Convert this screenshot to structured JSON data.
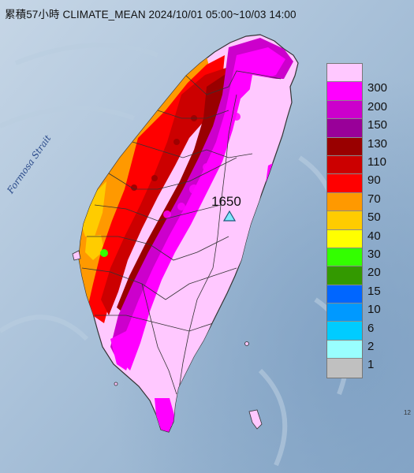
{
  "title": "累積57小時 CLIMATE_MEAN 2024/10/01 05:00~10/03 14:00",
  "strait_label": "Formosa Strait",
  "peak": {
    "value": "1650",
    "icon": "triangle-marker-icon"
  },
  "edge_label": "12",
  "legend": [
    {
      "label": "300",
      "color": "#ffc8ff"
    },
    {
      "label": "200",
      "color": "#ff00ff"
    },
    {
      "label": "150",
      "color": "#cc00cc"
    },
    {
      "label": "130",
      "color": "#990099"
    },
    {
      "label": "110",
      "color": "#990000"
    },
    {
      "label": "90",
      "color": "#cc0000"
    },
    {
      "label": "70",
      "color": "#ff0000"
    },
    {
      "label": "50",
      "color": "#ff9900"
    },
    {
      "label": "40",
      "color": "#ffcc00"
    },
    {
      "label": "30",
      "color": "#ffff00"
    },
    {
      "label": "20",
      "color": "#33ff00"
    },
    {
      "label": "15",
      "color": "#339900"
    },
    {
      "label": "10",
      "color": "#0066ff"
    },
    {
      "label": "6",
      "color": "#0099ff"
    },
    {
      "label": "2",
      "color": "#00ccff"
    },
    {
      "label": "1",
      "color": "#99ffff"
    },
    {
      "label": "",
      "color": "#c0c0c0"
    }
  ]
}
